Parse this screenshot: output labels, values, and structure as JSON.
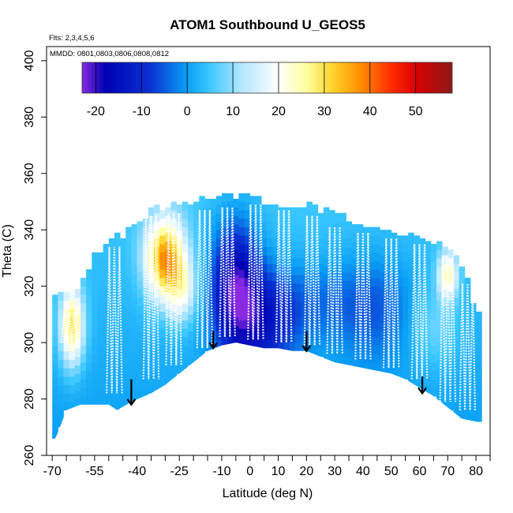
{
  "chart_data": {
    "type": "heatmap",
    "title": "ATOM1 Southbound U_GEOS5",
    "xlabel": "Latitude (deg N)",
    "ylabel": "Theta (C)",
    "xlim": [
      -72,
      85
    ],
    "ylim": [
      260,
      405
    ],
    "x_ticks": [
      -70,
      -55,
      -40,
      -25,
      -10,
      0,
      10,
      20,
      30,
      40,
      50,
      60,
      70,
      80
    ],
    "x_minor_ticks": [
      -65,
      -60,
      -50,
      -45,
      -35,
      -30,
      -20,
      -15,
      -5,
      5,
      15,
      25,
      35,
      45,
      55,
      65,
      75,
      85
    ],
    "y_ticks": [
      260,
      280,
      300,
      320,
      340,
      360,
      380,
      400
    ],
    "notes": {
      "flights": "Flts: 2,3,4,5,6",
      "dates": "MMDD: 0801,0803,0806,0808,0812"
    },
    "colorbar": {
      "min": -23,
      "max": 58,
      "ticks": [
        -20,
        -10,
        0,
        10,
        20,
        30,
        40,
        50
      ],
      "stops": [
        {
          "value": -23,
          "color": "#8a2be2"
        },
        {
          "value": -18,
          "color": "#0000b4"
        },
        {
          "value": -8,
          "color": "#0a32d2"
        },
        {
          "value": 0,
          "color": "#0aa0f5"
        },
        {
          "value": 5,
          "color": "#3cc8ff"
        },
        {
          "value": 12,
          "color": "#b4e6ff"
        },
        {
          "value": 20,
          "color": "#ffffff"
        },
        {
          "value": 26,
          "color": "#ffffa0"
        },
        {
          "value": 32,
          "color": "#ffd228"
        },
        {
          "value": 38,
          "color": "#ff8c00"
        },
        {
          "value": 45,
          "color": "#ff2800"
        },
        {
          "value": 50,
          "color": "#dc0000"
        },
        {
          "value": 58,
          "color": "#8b1a1a"
        }
      ]
    },
    "bottom_boundary": [
      [
        -70,
        264
      ],
      [
        -68,
        268
      ],
      [
        -65,
        276
      ],
      [
        -60,
        278
      ],
      [
        -55,
        278
      ],
      [
        -50,
        278
      ],
      [
        -47,
        276
      ],
      [
        -42,
        279
      ],
      [
        -35,
        282
      ],
      [
        -30,
        285
      ],
      [
        -25,
        289
      ],
      [
        -20,
        293
      ],
      [
        -15,
        297
      ],
      [
        -10,
        299
      ],
      [
        -5,
        300
      ],
      [
        0,
        299
      ],
      [
        5,
        298
      ],
      [
        10,
        298
      ],
      [
        15,
        297
      ],
      [
        20,
        297
      ],
      [
        25,
        295
      ],
      [
        30,
        293
      ],
      [
        40,
        291
      ],
      [
        50,
        289
      ],
      [
        55,
        287
      ],
      [
        60,
        284
      ],
      [
        65,
        281
      ],
      [
        70,
        277
      ],
      [
        75,
        273
      ],
      [
        80,
        272
      ]
    ],
    "top_boundary": [
      [
        -70,
        315
      ],
      [
        -60,
        318
      ],
      [
        -55,
        330
      ],
      [
        -50,
        335
      ],
      [
        -45,
        337
      ],
      [
        -40,
        341
      ],
      [
        -35,
        346
      ],
      [
        -30,
        347
      ],
      [
        -25,
        349
      ],
      [
        -20,
        349
      ],
      [
        -15,
        350
      ],
      [
        -10,
        350
      ],
      [
        -5,
        351
      ],
      [
        0,
        351
      ],
      [
        5,
        349
      ],
      [
        10,
        348
      ],
      [
        20,
        348
      ],
      [
        25,
        346
      ],
      [
        30,
        344
      ],
      [
        40,
        341
      ],
      [
        50,
        339
      ],
      [
        55,
        337
      ],
      [
        60,
        336
      ],
      [
        65,
        335
      ],
      [
        70,
        333
      ],
      [
        72,
        330
      ],
      [
        75,
        325
      ],
      [
        78,
        318
      ],
      [
        80,
        310
      ]
    ],
    "field_features": [
      {
        "x": -63,
        "y": 306,
        "sx": 3,
        "sy": 10,
        "u": 27
      },
      {
        "x": -30,
        "y": 330,
        "sx": 5,
        "sy": 10,
        "u": 34
      },
      {
        "x": -24,
        "y": 318,
        "sx": 4,
        "sy": 8,
        "u": 14
      },
      {
        "x": -5,
        "y": 320,
        "sx": 6,
        "sy": 16,
        "u": -22
      },
      {
        "x": 5,
        "y": 306,
        "sx": 8,
        "sy": 12,
        "u": -12
      },
      {
        "x": 20,
        "y": 315,
        "sx": 18,
        "sy": 10,
        "u": -6
      },
      {
        "x": 45,
        "y": 312,
        "sx": 10,
        "sy": 14,
        "u": -6
      },
      {
        "x": 70,
        "y": 324,
        "sx": 2.5,
        "sy": 6,
        "u": 22
      },
      {
        "x": 65,
        "y": 305,
        "sx": 6,
        "sy": 10,
        "u": 6
      }
    ],
    "arrows": [
      {
        "x": -42,
        "y_top": 287,
        "y_bottom": 278
      },
      {
        "x": -13,
        "y_top": 304,
        "y_bottom": 298
      },
      {
        "x": 20,
        "y_top": 304,
        "y_bottom": 297
      },
      {
        "x": 61,
        "y_top": 288,
        "y_bottom": 282
      }
    ],
    "flight_track_x": [
      -68,
      -60,
      -53,
      -46,
      -38,
      -31,
      -25,
      -18,
      -12,
      -6,
      0,
      6,
      12,
      18,
      24,
      30,
      37,
      43,
      48,
      53,
      59,
      65,
      71,
      77
    ],
    "flight_track_profiles": [
      {
        "x": -64,
        "ymin": 298,
        "ymax": 312
      },
      {
        "x": -48,
        "ymin": 280,
        "ymax": 335
      },
      {
        "x": -35,
        "ymin": 285,
        "ymax": 346
      },
      {
        "x": -27,
        "ymin": 290,
        "ymax": 347
      },
      {
        "x": -16,
        "ymin": 296,
        "ymax": 348
      },
      {
        "x": -8,
        "ymin": 300,
        "ymax": 349
      },
      {
        "x": 2,
        "ymin": 299,
        "ymax": 350
      },
      {
        "x": 12,
        "ymin": 298,
        "ymax": 348
      },
      {
        "x": 22,
        "ymin": 297,
        "ymax": 346
      },
      {
        "x": 30,
        "ymin": 294,
        "ymax": 342
      },
      {
        "x": 40,
        "ymin": 292,
        "ymax": 340
      },
      {
        "x": 50,
        "ymin": 289,
        "ymax": 338
      },
      {
        "x": 60,
        "ymin": 285,
        "ymax": 336
      },
      {
        "x": 70,
        "ymin": 277,
        "ymax": 332
      },
      {
        "x": 77,
        "ymin": 274,
        "ymax": 322
      }
    ]
  }
}
